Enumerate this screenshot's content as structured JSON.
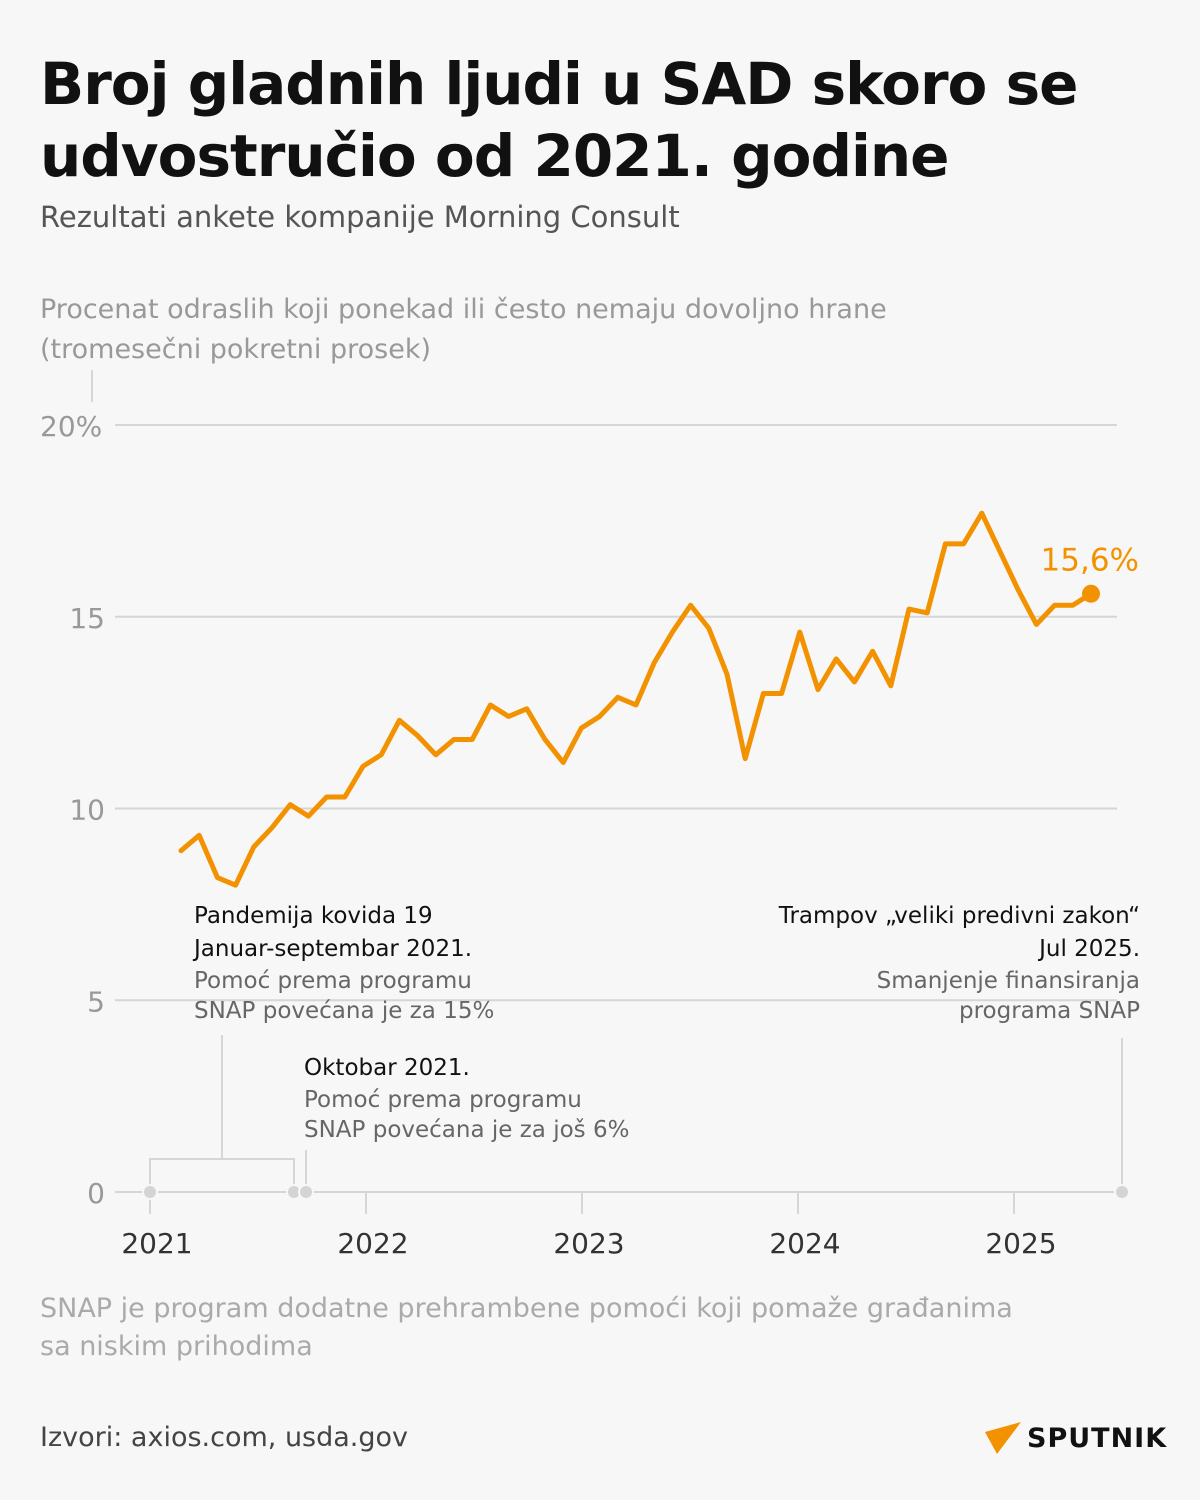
{
  "header": {
    "title": "Broj gladnih ljudi u SAD skoro se udvostručio od 2021. godine",
    "subtitle": "Rezultati ankete kompanije Morning Consult"
  },
  "chart_data": {
    "type": "line",
    "title": "Procenat odraslih koji ponekad ili često nemaju dovoljno hrane",
    "ylabel": "Procenat odraslih koji ponekad ili često nemaju dovoljno hrane (tromesečni pokretni prosek)",
    "ylabel_line1": "Procenat odraslih koji ponekad ili često nemaju dovoljno hrane",
    "ylabel_line2": "(tromesečni pokretni prosek)",
    "ylim": [
      0,
      20
    ],
    "y_ticks": [
      {
        "value": 0,
        "label": "0"
      },
      {
        "value": 5,
        "label": "5"
      },
      {
        "value": 10,
        "label": "10"
      },
      {
        "value": 15,
        "label": "15"
      },
      {
        "value": 20,
        "label": "20%"
      }
    ],
    "x_ticks": [
      {
        "value": "2021-01",
        "label": "2021"
      },
      {
        "value": "2022-01",
        "label": "2022"
      },
      {
        "value": "2023-01",
        "label": "2023"
      },
      {
        "value": "2024-01",
        "label": "2024"
      },
      {
        "value": "2025-01",
        "label": "2025"
      }
    ],
    "grid": true,
    "series": [
      {
        "name": "Procenat odraslih",
        "color": "#f39200",
        "start": "2021-03",
        "values": [
          8.9,
          9.3,
          8.2,
          8.0,
          9.0,
          9.5,
          10.1,
          9.8,
          10.3,
          10.3,
          11.1,
          11.4,
          12.3,
          11.9,
          11.4,
          11.8,
          11.8,
          12.7,
          12.4,
          12.6,
          11.8,
          11.2,
          12.1,
          12.4,
          12.9,
          12.7,
          13.8,
          14.6,
          15.3,
          14.7,
          13.5,
          11.3,
          13.0,
          13.0,
          14.6,
          13.1,
          13.9,
          13.3,
          14.1,
          13.2,
          15.2,
          15.1,
          16.9,
          16.9,
          17.7,
          16.7,
          15.7,
          14.8,
          15.3,
          15.3,
          15.6
        ]
      }
    ],
    "last_value_label": "15,6%",
    "events": [
      {
        "date_start": "2021-01",
        "date_end": "2021-09",
        "title": "Pandemija kovida 19",
        "date_label": "Januar-septembar 2021.",
        "text1": "Pomoć prema programu",
        "text2": "SNAP povećana je za 15%"
      },
      {
        "date_start": "2021-10",
        "title": "Oktobar 2021.",
        "text1": "Pomoć prema programu",
        "text2": "SNAP povećana je za još 6%"
      },
      {
        "date_start": "2025-07",
        "title": "Trampov „veliki predivni zakon“",
        "date_label": "Jul 2025.",
        "text1": "Smanjenje finansiranja",
        "text2": "programa SNAP"
      }
    ]
  },
  "footer": {
    "note": "SNAP je program dodatne prehrambene pomoći koji pomaže građanima sa niskim prihodima",
    "source": "Izvori: axios.com, usda.gov",
    "logo": "SPUTNIK"
  },
  "colors": {
    "accent": "#f39200",
    "grid": "#d6d6d6",
    "dot": "#d4d4d4"
  }
}
